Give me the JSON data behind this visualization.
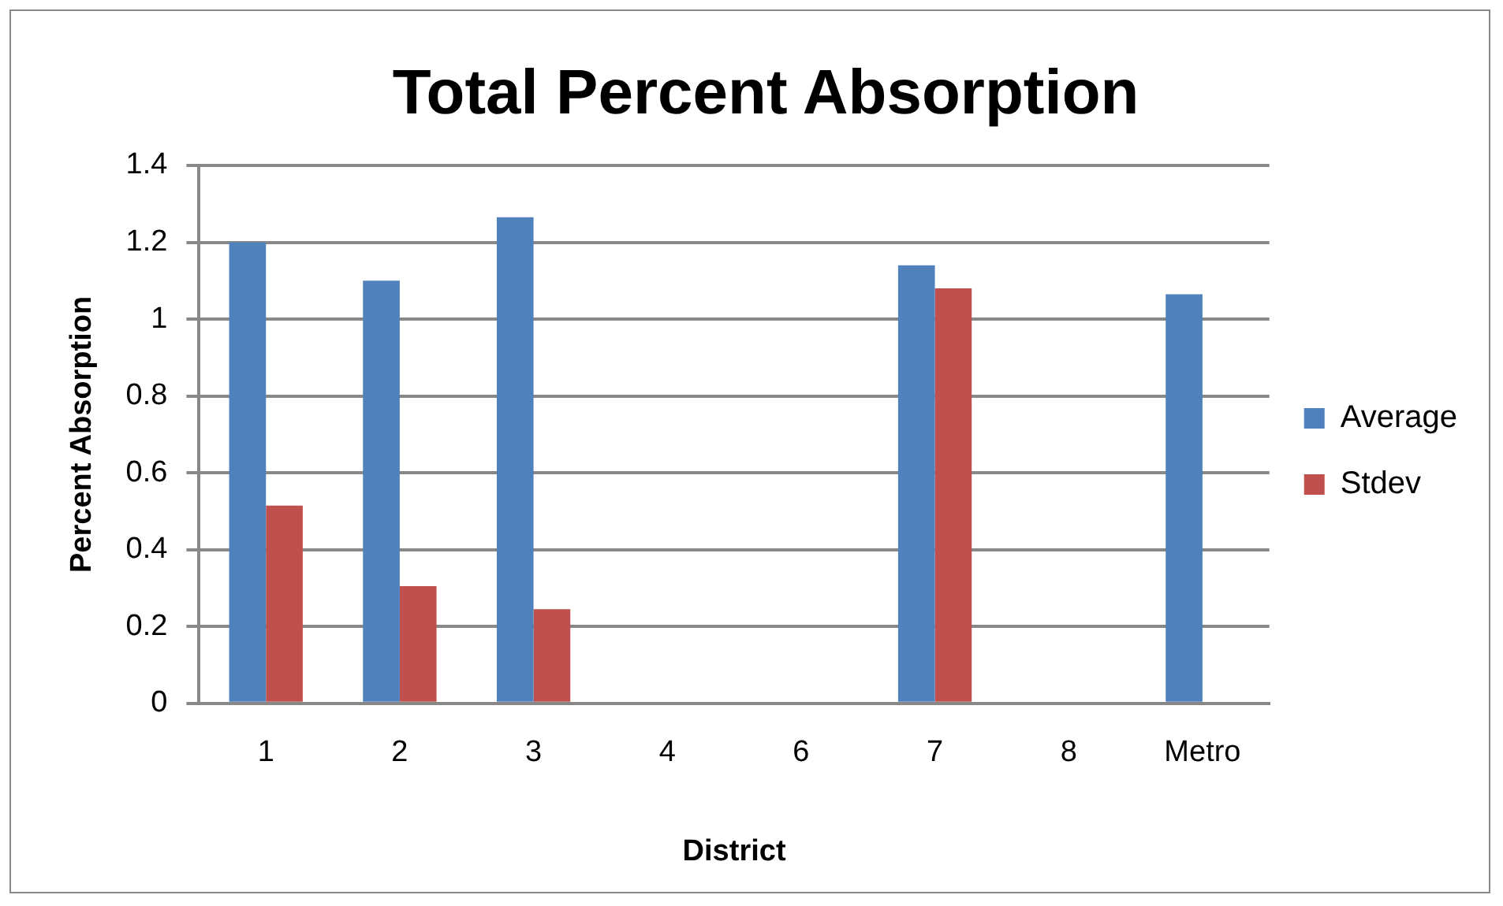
{
  "chart_data": {
    "type": "bar",
    "title": "Total Percent Absorption",
    "xlabel": "District",
    "ylabel": "Percent Absorption",
    "categories": [
      "1",
      "2",
      "3",
      "4",
      "6",
      "7",
      "8",
      "Metro"
    ],
    "series": [
      {
        "name": "Average",
        "color": "#4f81bd",
        "values": [
          1.2,
          1.1,
          1.265,
          null,
          null,
          1.14,
          null,
          1.065
        ]
      },
      {
        "name": "Stdev",
        "color": "#c0504d",
        "values": [
          0.515,
          0.305,
          0.245,
          null,
          null,
          1.08,
          null,
          null
        ]
      }
    ],
    "ylim": [
      0,
      1.4
    ],
    "yticks": [
      0,
      {
        "value": 0.2,
        "label": "0.2"
      },
      {
        "value": 0.4,
        "label": "0.4"
      },
      {
        "value": 0.6,
        "label": "0.6"
      },
      {
        "value": 0.8,
        "label": "0.8"
      },
      1,
      {
        "value": 1.2,
        "label": "1.2"
      },
      {
        "value": 1.4,
        "label": "1.4"
      }
    ],
    "grid": "y",
    "legend": "right"
  }
}
